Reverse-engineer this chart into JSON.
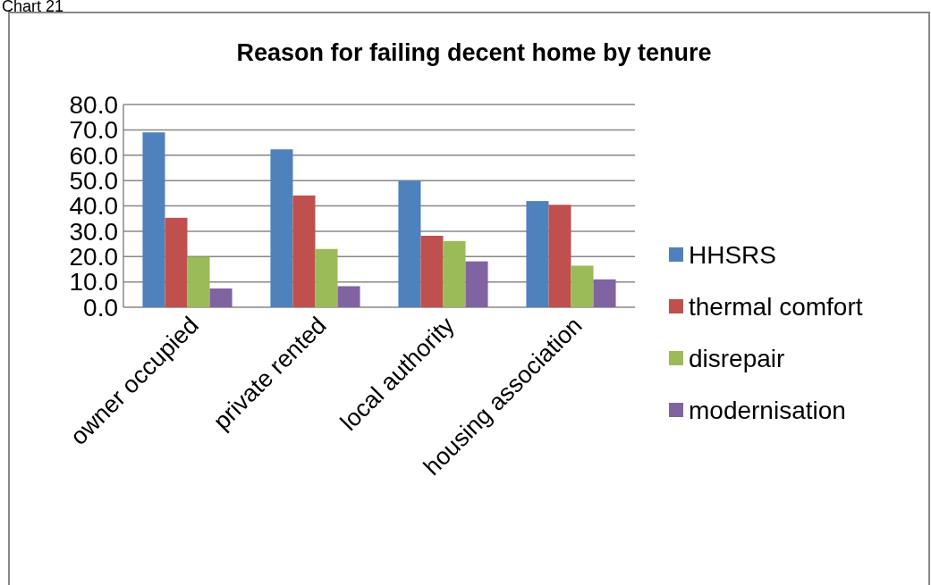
{
  "chart_data": {
    "type": "bar",
    "title": "Reason for failing decent home by tenure",
    "annotations": [
      "Chart 21"
    ],
    "categories": [
      "owner occupied",
      "private rented",
      "local authority",
      "housing association"
    ],
    "series": [
      {
        "name": "HHSRS",
        "color": "#4f81bd",
        "values": [
          69.0,
          62.3,
          49.9,
          41.9
        ]
      },
      {
        "name": "thermal comfort",
        "color": "#c0504d",
        "values": [
          35.3,
          44.1,
          28.2,
          40.4
        ]
      },
      {
        "name": "disrepair",
        "color": "#9bbb59",
        "values": [
          19.8,
          23.0,
          26.1,
          16.4
        ]
      },
      {
        "name": "modernisation",
        "color": "#8064a2",
        "values": [
          7.4,
          8.3,
          18.1,
          11.0
        ]
      }
    ],
    "ylim": [
      0,
      80
    ],
    "yticks": [
      {
        "value": 0,
        "label": "0.0"
      },
      {
        "value": 10,
        "label": "10.0"
      },
      {
        "value": 20,
        "label": "20.0"
      },
      {
        "value": 30,
        "label": "30.0"
      },
      {
        "value": 40,
        "label": "40.0"
      },
      {
        "value": 50,
        "label": "50.0"
      },
      {
        "value": 60,
        "label": "60.0"
      },
      {
        "value": 70,
        "label": "70.0"
      },
      {
        "value": 80,
        "label": "80.0"
      }
    ],
    "grid": "y",
    "legend": "right"
  }
}
